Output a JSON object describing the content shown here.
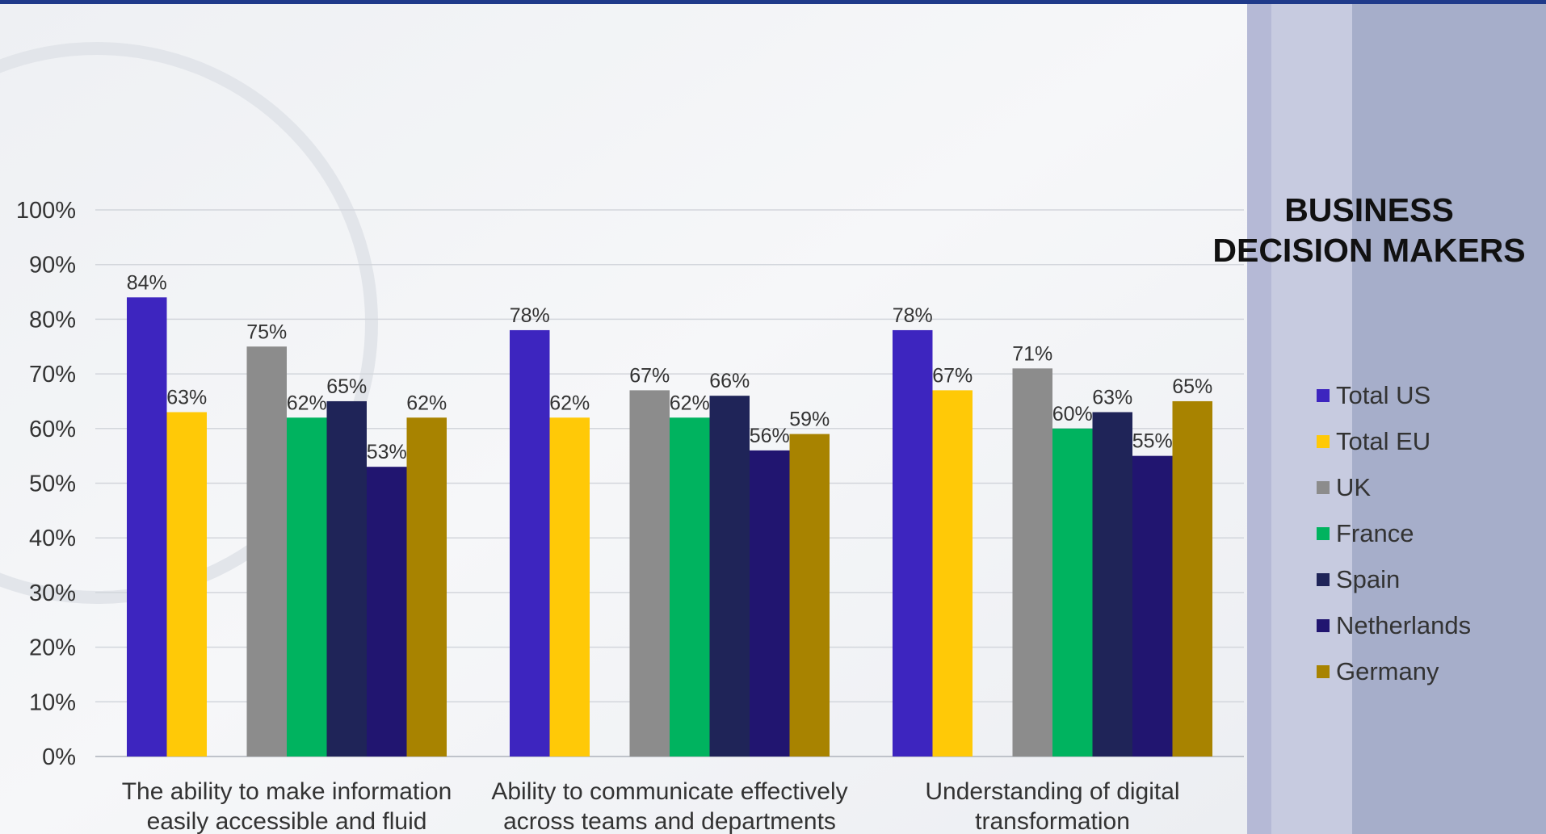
{
  "chart_data": {
    "type": "bar",
    "title": "",
    "xlabel": "",
    "ylabel": "",
    "ylim": [
      0,
      100
    ],
    "y_ticks": [
      "0%",
      "10%",
      "20%",
      "30%",
      "40%",
      "50%",
      "60%",
      "70%",
      "80%",
      "90%",
      "100%"
    ],
    "grid": true,
    "legend_position": "right",
    "categories": [
      [
        "The ability to make information",
        "easily accessible and fluid"
      ],
      [
        "Ability to communicate effectively",
        "across teams and departments"
      ],
      [
        "Understanding of digital",
        "transformation"
      ]
    ],
    "series": [
      {
        "name": "Total US",
        "color": "#3d25bf",
        "values": [
          84,
          78,
          78
        ],
        "labels": [
          "84%",
          "78%",
          "78%"
        ]
      },
      {
        "name": "Total EU",
        "color": "#ffc907",
        "values": [
          63,
          62,
          67
        ],
        "labels": [
          "63%",
          "62%",
          "67%"
        ]
      },
      {
        "name": "UK",
        "color": "#8c8c8c",
        "values": [
          75,
          67,
          71
        ],
        "labels": [
          "75%",
          "67%",
          "71%"
        ]
      },
      {
        "name": "France",
        "color": "#00b35f",
        "values": [
          62,
          62,
          60
        ],
        "labels": [
          "62%",
          "62%",
          "60%"
        ]
      },
      {
        "name": "Spain",
        "color": "#1f2458",
        "values": [
          65,
          66,
          63
        ],
        "labels": [
          "65%",
          "66%",
          "63%"
        ]
      },
      {
        "name": "Netherlands",
        "color": "#211570",
        "values": [
          53,
          56,
          55
        ],
        "labels": [
          "53%",
          "56%",
          "55%"
        ]
      },
      {
        "name": "Germany",
        "color": "#a88300",
        "values": [
          62,
          59,
          65
        ],
        "labels": [
          "62%",
          "59%",
          "65%"
        ]
      }
    ]
  },
  "side_panel": {
    "title_lines": [
      "BUSINESS",
      "DECISION MAKERS"
    ]
  }
}
